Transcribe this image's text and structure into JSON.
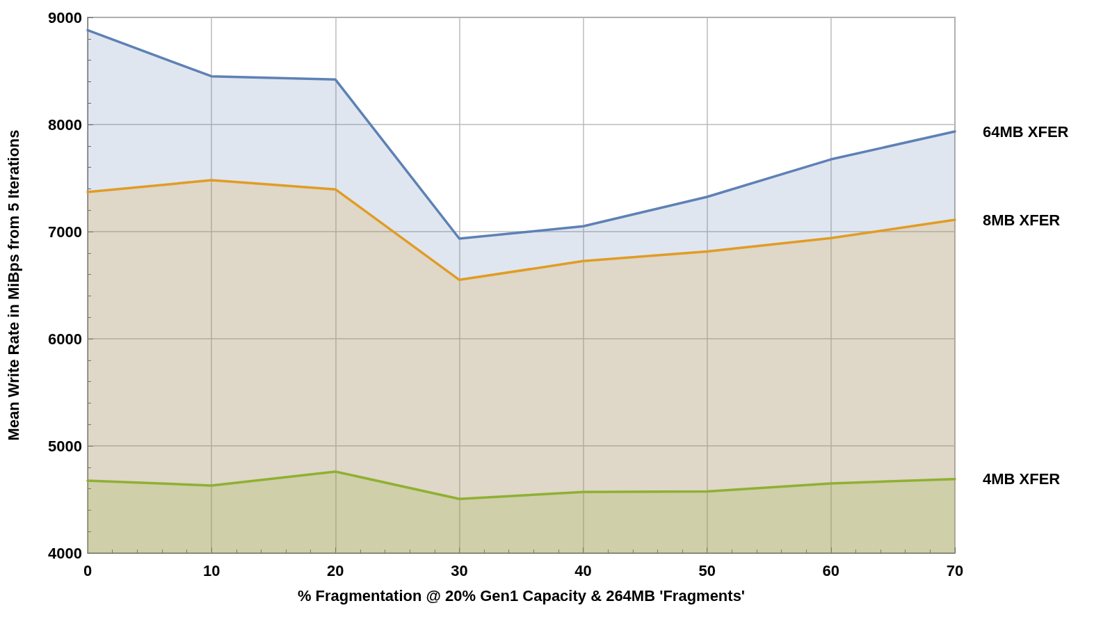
{
  "chart_data": {
    "type": "area",
    "xlabel": "% Fragmentation @ 20% Gen1 Capacity & 264MB 'Fragments'",
    "ylabel": "Mean Write Rate in MiBps from 5 Iterations",
    "x": [
      0,
      10,
      20,
      30,
      40,
      50,
      60,
      70
    ],
    "series": [
      {
        "name": "64MB XFER",
        "color": "#5e81b5",
        "values": [
          8880,
          8450,
          8420,
          6935,
          7050,
          7325,
          7675,
          7935
        ]
      },
      {
        "name": "8MB XFER",
        "color": "#e19c24",
        "values": [
          7370,
          7480,
          7395,
          6550,
          6725,
          6815,
          6940,
          7110
        ]
      },
      {
        "name": "4MB XFER",
        "color": "#8fb032",
        "values": [
          4675,
          4630,
          4760,
          4505,
          4570,
          4575,
          4650,
          4690
        ]
      }
    ],
    "xlim": [
      0,
      70
    ],
    "xticks": [
      0,
      10,
      20,
      30,
      40,
      50,
      60,
      70
    ],
    "ylim": [
      4000,
      9000
    ],
    "yticks": [
      4000,
      5000,
      6000,
      7000,
      8000,
      9000
    ],
    "grid": true,
    "legend": false,
    "marker": "none",
    "line_style": "solid"
  }
}
